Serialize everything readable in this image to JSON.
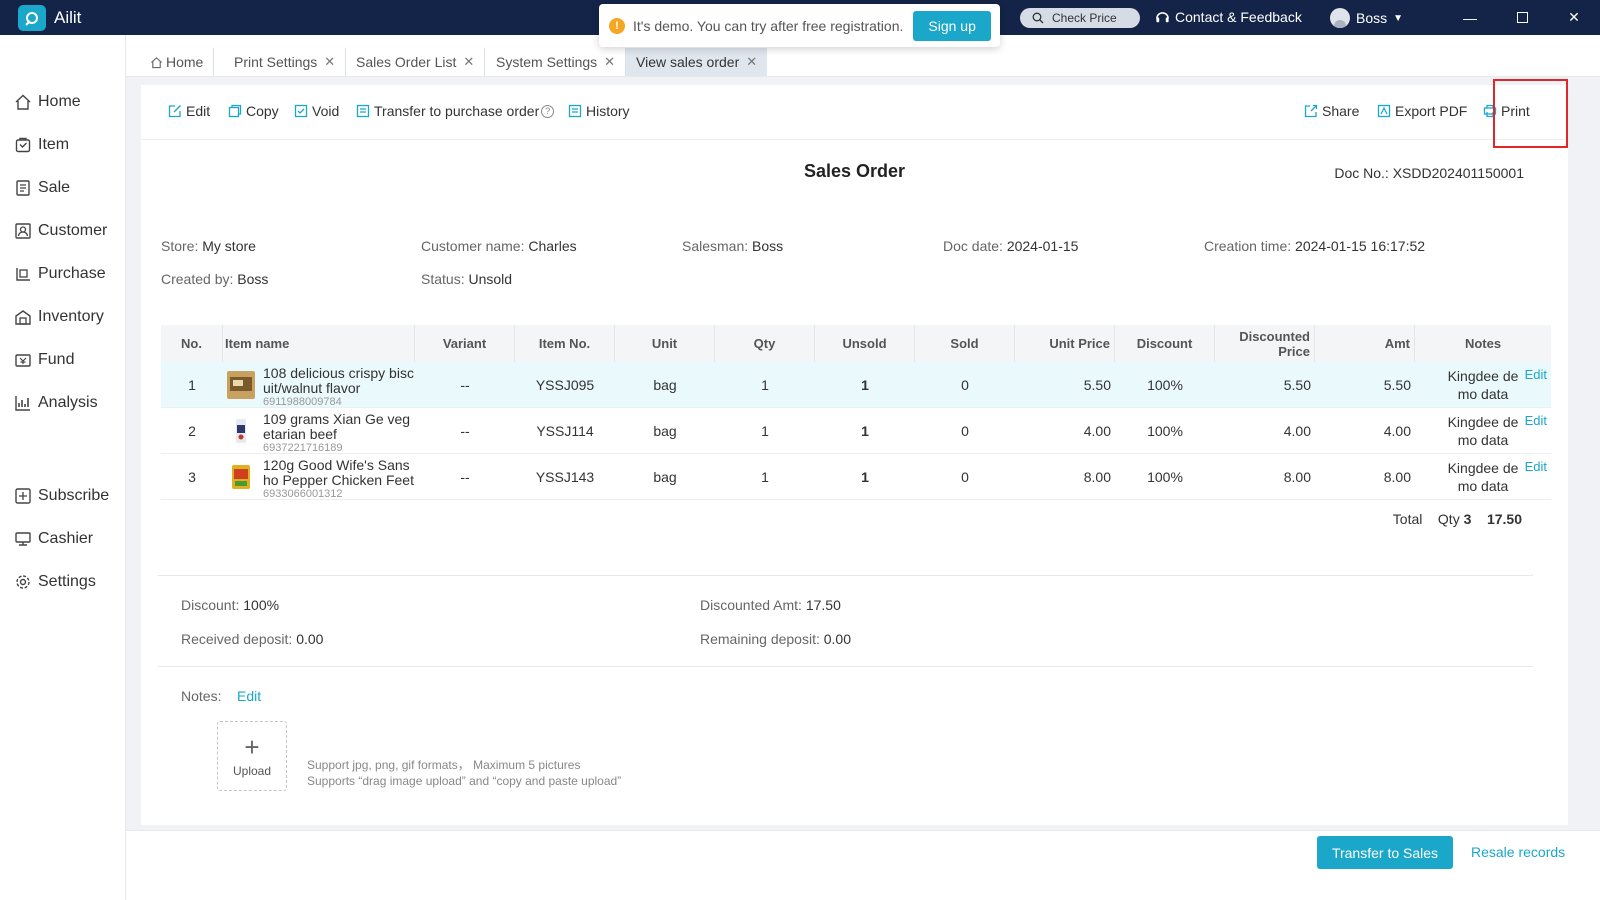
{
  "app": {
    "name": "Ailit"
  },
  "banner": {
    "message": "It's demo. You can try after free registration.",
    "signup_label": "Sign up"
  },
  "header": {
    "check_price": "Check Price",
    "contact": "Contact & Feedback",
    "user": "Boss"
  },
  "sidebar": {
    "items": [
      {
        "label": "Home",
        "icon": "home-icon"
      },
      {
        "label": "Item",
        "icon": "item-icon"
      },
      {
        "label": "Sale",
        "icon": "sale-icon"
      },
      {
        "label": "Customer",
        "icon": "customer-icon"
      },
      {
        "label": "Purchase",
        "icon": "purchase-icon"
      },
      {
        "label": "Inventory",
        "icon": "inventory-icon"
      },
      {
        "label": "Fund",
        "icon": "fund-icon"
      },
      {
        "label": "Analysis",
        "icon": "analysis-icon"
      },
      {
        "label": "Subscribe",
        "icon": "subscribe-icon"
      },
      {
        "label": "Cashier",
        "icon": "cashier-icon"
      },
      {
        "label": "Settings",
        "icon": "settings-icon"
      }
    ]
  },
  "tabs": [
    {
      "label": "Home"
    },
    {
      "label": "Print Settings"
    },
    {
      "label": "Sales Order List"
    },
    {
      "label": "System Settings"
    },
    {
      "label": "View sales order"
    }
  ],
  "toolbar": {
    "edit": "Edit",
    "copy": "Copy",
    "void": "Void",
    "transfer_po": "Transfer to purchase order",
    "history": "History",
    "share": "Share",
    "export_pdf": "Export PDF",
    "print": "Print"
  },
  "doc": {
    "title": "Sales Order",
    "doc_no_label": "Doc No.:",
    "doc_no": "XSDD202401150001",
    "store_label": "Store:",
    "store": "My store",
    "customer_label": "Customer name:",
    "customer": "Charles",
    "salesman_label": "Salesman:",
    "salesman": "Boss",
    "date_label": "Doc date:",
    "date": "2024-01-15",
    "created_label": "Creation time:",
    "created": "2024-01-15 16:17:52",
    "created_by_label": "Created by:",
    "created_by": "Boss",
    "status_label": "Status:",
    "status": "Unsold"
  },
  "table": {
    "headers": {
      "no": "No.",
      "name": "Item name",
      "variant": "Variant",
      "item_no": "Item No.",
      "unit": "Unit",
      "qty": "Qty",
      "unsold": "Unsold",
      "sold": "Sold",
      "unit_price": "Unit Price",
      "discount": "Discount",
      "dprice_1": "Discounted",
      "dprice_2": "Price",
      "amt": "Amt",
      "notes": "Notes"
    },
    "rows": [
      {
        "no": "1",
        "name_1": "108 delicious crispy bisc",
        "name_2": "uit/walnut flavor",
        "barcode": "6911988009784",
        "variant": "--",
        "item_no": "YSSJ095",
        "unit": "bag",
        "qty": "1",
        "unsold": "1",
        "sold": "0",
        "unit_price": "5.50",
        "discount": "100%",
        "dprice": "5.50",
        "amt": "5.50",
        "notes_1": "Kingdee de",
        "notes_2": "mo data",
        "edit": "Edit"
      },
      {
        "no": "2",
        "name_1": "109 grams Xian Ge veg",
        "name_2": "etarian beef",
        "barcode": "6937221716189",
        "variant": "--",
        "item_no": "YSSJ114",
        "unit": "bag",
        "qty": "1",
        "unsold": "1",
        "sold": "0",
        "unit_price": "4.00",
        "discount": "100%",
        "dprice": "4.00",
        "amt": "4.00",
        "notes_1": "Kingdee de",
        "notes_2": "mo data",
        "edit": "Edit"
      },
      {
        "no": "3",
        "name_1": "120g Good Wife's Sans",
        "name_2": "ho Pepper Chicken Feet",
        "barcode": "6933066001312",
        "variant": "--",
        "item_no": "YSSJ143",
        "unit": "bag",
        "qty": "1",
        "unsold": "1",
        "sold": "0",
        "unit_price": "8.00",
        "discount": "100%",
        "dprice": "8.00",
        "amt": "8.00",
        "notes_1": "Kingdee de",
        "notes_2": "mo data",
        "edit": "Edit"
      }
    ],
    "total_label": "Total",
    "total_qty_label": "Qty",
    "total_qty": "3",
    "total_amt": "17.50"
  },
  "summary": {
    "discount_label": "Discount:",
    "discount": "100%",
    "discounted_amt_label": "Discounted Amt:",
    "discounted_amt": "17.50",
    "received_label": "Received deposit:",
    "received": "0.00",
    "remaining_label": "Remaining deposit:",
    "remaining": "0.00"
  },
  "notes": {
    "label": "Notes:",
    "edit": "Edit",
    "upload": "Upload",
    "hint_1": "Support jpg, png, gif formats， Maximum 5 pictures",
    "hint_2": "Supports “drag image upload” and “copy and paste upload”"
  },
  "footer": {
    "transfer": "Transfer to Sales",
    "resale": "Resale records"
  }
}
